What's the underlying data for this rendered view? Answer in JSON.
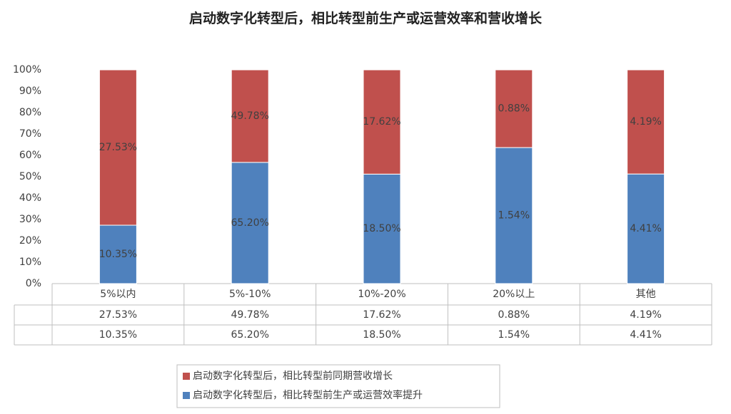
{
  "chart_data": {
    "type": "bar",
    "stacking": "percent",
    "title": "启动数字化转型后，相比转型前生产或运营效率和营收增长",
    "categories": [
      "5%以内",
      "5%-10%",
      "10%-20%",
      "20%以上",
      "其他"
    ],
    "series": [
      {
        "name": "启动数字化转型后，相比转型前同期营收增长",
        "color": "#c0504d",
        "values": [
          27.53,
          49.78,
          17.62,
          0.88,
          4.19
        ],
        "value_labels": [
          "27.53%",
          "49.78%",
          "17.62%",
          "0.88%",
          "4.19%"
        ]
      },
      {
        "name": "启动数字化转型后，相比转型前生产或运营效率提升",
        "color": "#4f81bd",
        "values": [
          10.35,
          65.2,
          18.5,
          1.54,
          4.41
        ],
        "value_labels": [
          "10.35%",
          "65.20%",
          "18.50%",
          "1.54%",
          "4.41%"
        ]
      }
    ],
    "ylim": [
      0,
      100
    ],
    "yticks": [
      {
        "value": 0,
        "label": "0%"
      },
      {
        "value": 10,
        "label": "10%"
      },
      {
        "value": 20,
        "label": "20%"
      },
      {
        "value": 30,
        "label": "30%"
      },
      {
        "value": 40,
        "label": "40%"
      },
      {
        "value": 50,
        "label": "50%"
      },
      {
        "value": 60,
        "label": "60%"
      },
      {
        "value": 70,
        "label": "70%"
      },
      {
        "value": 80,
        "label": "80%"
      },
      {
        "value": 90,
        "label": "90%"
      },
      {
        "value": 100,
        "label": "100%"
      }
    ],
    "grid": false
  }
}
